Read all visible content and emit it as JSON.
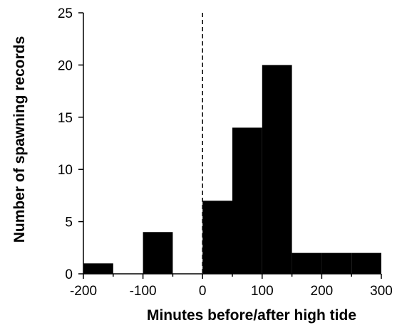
{
  "chart_data": {
    "type": "bar",
    "subtype": "histogram",
    "title": "",
    "xlabel": "Minutes before/after high tide",
    "ylabel": "Number of spawning records",
    "xlim": [
      -200,
      300
    ],
    "ylim": [
      0,
      25
    ],
    "x_ticks": [
      "-200",
      "-100",
      "0",
      "100",
      "200",
      "300"
    ],
    "y_ticks": [
      "0",
      "5",
      "10",
      "15",
      "20",
      "25"
    ],
    "bin_width": 50,
    "bins": [
      {
        "start": -200,
        "end": -150,
        "value": 1
      },
      {
        "start": -150,
        "end": -100,
        "value": 0
      },
      {
        "start": -100,
        "end": -50,
        "value": 4
      },
      {
        "start": -50,
        "end": 0,
        "value": 0
      },
      {
        "start": 0,
        "end": 50,
        "value": 7
      },
      {
        "start": 50,
        "end": 100,
        "value": 14
      },
      {
        "start": 100,
        "end": 150,
        "value": 20
      },
      {
        "start": 150,
        "end": 200,
        "value": 2
      },
      {
        "start": 200,
        "end": 250,
        "value": 2
      },
      {
        "start": 250,
        "end": 300,
        "value": 2
      }
    ],
    "reference_line": {
      "x": 0,
      "style": "dashed"
    },
    "bar_color": "#000000",
    "grid": false,
    "legend": false
  }
}
